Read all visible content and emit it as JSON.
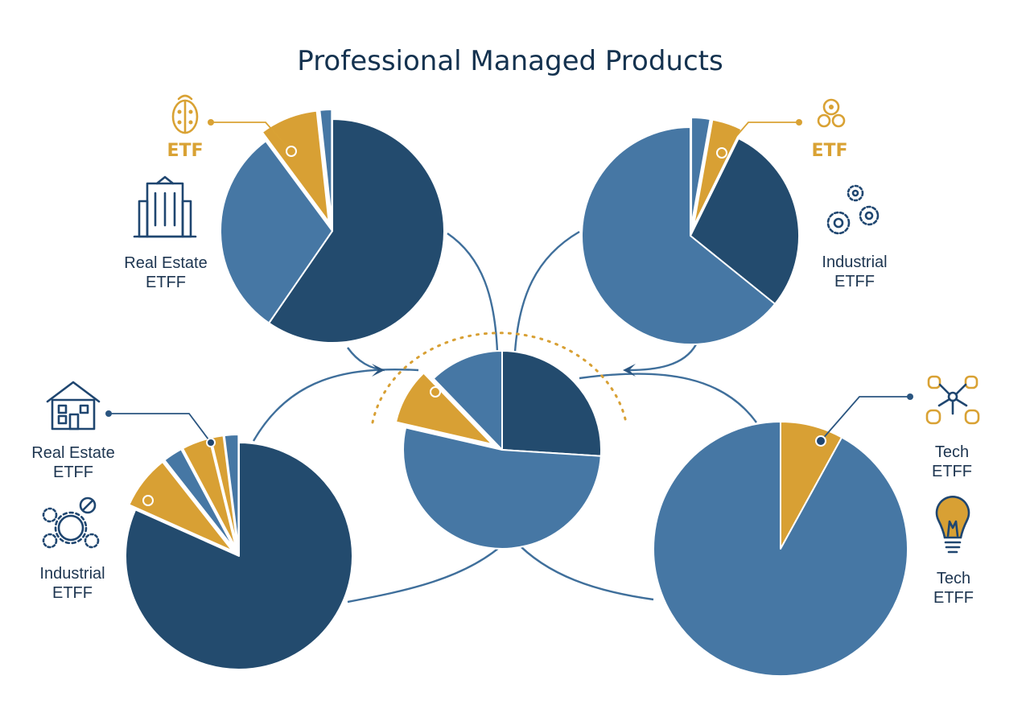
{
  "title": "Professional Managed Products",
  "colors": {
    "navy": "#234b6e",
    "steel": "#4677a4",
    "gold": "#d8a034",
    "title": "#14324f",
    "connector": "#3f6f9b"
  },
  "labels": {
    "etf_left": "ETF",
    "etf_right": "ETF",
    "real_estate_top": [
      "Real Estate",
      "ETFF"
    ],
    "industrial_top": [
      "Industrial",
      "ETFF"
    ],
    "real_estate_bottom": [
      "Real Estate",
      "ETFF"
    ],
    "industrial_bottom": [
      "Industrial",
      "ETFF"
    ],
    "tech_upper": [
      "Tech",
      "ETFF"
    ],
    "tech_lower": [
      "Tech",
      "ETFF"
    ]
  },
  "icons": [
    "ladybug-icon",
    "office-building-icon",
    "shield-icon",
    "gears-icon",
    "house-icon",
    "gear-wrench-icon",
    "network-icon",
    "lightbulb-icon"
  ],
  "chart_data": [
    {
      "type": "pie",
      "name": "top-left",
      "slices": [
        {
          "value": 58.7,
          "color": "navy"
        },
        {
          "value": 29.8,
          "color": "steel"
        },
        {
          "value": 8.3,
          "color": "gold",
          "exploded": true
        },
        {
          "value": 1.7,
          "color": "steel",
          "exploded": true
        }
      ]
    },
    {
      "type": "pie",
      "name": "top-right",
      "slices": [
        {
          "value": 2.8,
          "color": "steel",
          "exploded": true
        },
        {
          "value": 4.5,
          "color": "gold",
          "exploded": true
        },
        {
          "value": 28.5,
          "color": "navy"
        },
        {
          "value": 64.2,
          "color": "steel"
        }
      ]
    },
    {
      "type": "pie",
      "name": "center",
      "slices": [
        {
          "value": 26.0,
          "color": "navy"
        },
        {
          "value": 52.6,
          "color": "steel"
        },
        {
          "value": 9.2,
          "color": "gold",
          "exploded": true
        },
        {
          "value": 12.2,
          "color": "steel"
        }
      ]
    },
    {
      "type": "pie",
      "name": "bottom-left",
      "slices": [
        {
          "value": 81.7,
          "color": "navy"
        },
        {
          "value": 7.7,
          "color": "gold",
          "exploded": true
        },
        {
          "value": 2.8,
          "color": "steel",
          "exploded": true
        },
        {
          "value": 4.0,
          "color": "gold",
          "exploded": true
        },
        {
          "value": 1.8,
          "color": "gold",
          "exploded": true
        },
        {
          "value": 2.0,
          "color": "steel",
          "exploded": true
        }
      ]
    },
    {
      "type": "pie",
      "name": "bottom-right",
      "slices": [
        {
          "value": 8.0,
          "color": "gold",
          "exploded": true
        },
        {
          "value": 92.0,
          "color": "steel"
        }
      ]
    }
  ]
}
